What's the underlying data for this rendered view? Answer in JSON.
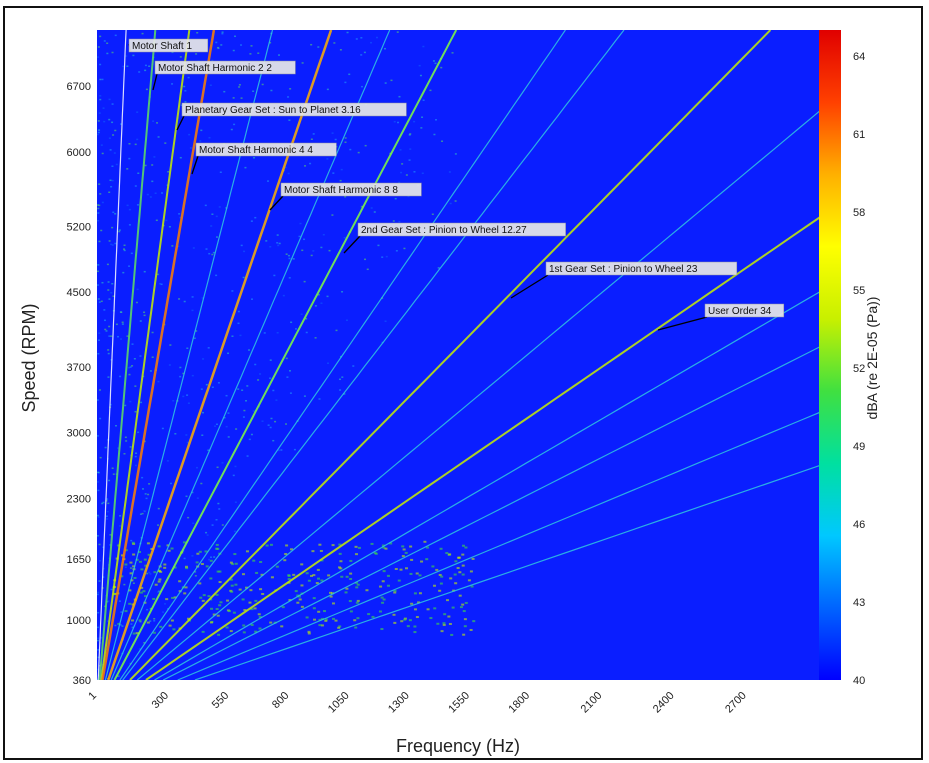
{
  "chart_data": {
    "type": "heatmap",
    "title": "",
    "xlabel": "Frequency (Hz)",
    "ylabel": "Speed (RPM)",
    "colorbar_label": "dBA (re 2E-05 (Pa))",
    "xlim": [
      1,
      3000
    ],
    "ylim": [
      360,
      7300
    ],
    "x_ticks": [
      "1",
      "300",
      "550",
      "800",
      "1050",
      "1300",
      "1550",
      "1800",
      "2100",
      "2400",
      "2700"
    ],
    "x_tick_values": [
      1,
      300,
      550,
      800,
      1050,
      1300,
      1550,
      1800,
      2100,
      2400,
      2700
    ],
    "y_ticks": [
      "360",
      "1000",
      "1650",
      "2300",
      "3000",
      "3700",
      "4500",
      "5200",
      "6000",
      "6700"
    ],
    "y_tick_values": [
      360,
      1000,
      1650,
      2300,
      3000,
      3700,
      4500,
      5200,
      6000,
      6700
    ],
    "colorbar_ticks": [
      "40",
      "43",
      "46",
      "49",
      "52",
      "55",
      "58",
      "61",
      "64"
    ],
    "colorbar_values": [
      40,
      43,
      46,
      49,
      52,
      55,
      58,
      61,
      64
    ],
    "colorbar_range": [
      40,
      65
    ],
    "colormap": [
      "#0000ff",
      "#0064ff",
      "#00c8ff",
      "#00e0a0",
      "#40e040",
      "#c8f000",
      "#ffff00",
      "#ffb000",
      "#ff4000",
      "#e00000"
    ],
    "background_color": "#0a1eff",
    "annotations": [
      {
        "label": "Motor Shaft 1",
        "order": 1
      },
      {
        "label": "Motor Shaft Harmonic 2 2",
        "order": 2
      },
      {
        "label": "Planetary Gear Set : Sun to Planet 3.16",
        "order": 3.16
      },
      {
        "label": "Motor Shaft Harmonic 4 4",
        "order": 4
      },
      {
        "label": "Motor Shaft Harmonic 8 8",
        "order": 8
      },
      {
        "label": "2nd Gear Set : Pinion to Wheel 12.27",
        "order": 12.27
      },
      {
        "label": "1st Gear Set : Pinion to Wheel 23",
        "order": 23
      },
      {
        "label": "User Order 34",
        "order": 34
      }
    ]
  }
}
